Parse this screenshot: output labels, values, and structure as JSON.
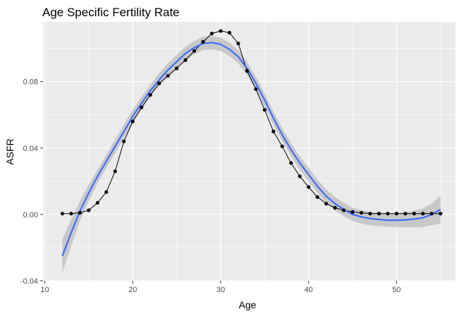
{
  "chart_data": {
    "type": "line",
    "title": "Age Specific Fertility Rate",
    "xlabel": "Age",
    "ylabel": "ASFR",
    "xlim": [
      9.8,
      56.7
    ],
    "ylim": [
      -0.04,
      0.116
    ],
    "x_ticks": [
      10,
      20,
      30,
      40,
      50
    ],
    "y_ticks": [
      -0.04,
      0.0,
      0.04,
      0.08
    ],
    "x_tick_labels": [
      "10",
      "20",
      "30",
      "40",
      "50"
    ],
    "y_tick_labels": [
      "-0.04",
      "0.00",
      "0.04",
      "0.08"
    ],
    "grid": true,
    "legend": "none",
    "colors": {
      "panel": "#ebebeb",
      "grid": "#ffffff",
      "points": "#000000",
      "smooth": "#3366ff",
      "ribbon": "#c2c2c2"
    },
    "series": [
      {
        "kind": "observed-points-with-line",
        "x": [
          12,
          13,
          14,
          15,
          16,
          17,
          18,
          19,
          20,
          21,
          22,
          23,
          24,
          25,
          26,
          27,
          28,
          29,
          30,
          31,
          32,
          33,
          34,
          35,
          36,
          37,
          38,
          39,
          40,
          41,
          42,
          43,
          44,
          45,
          46,
          47,
          48,
          49,
          50,
          51,
          52,
          53,
          54,
          55
        ],
        "values": [
          0.0005,
          0.0005,
          0.001,
          0.0025,
          0.007,
          0.0135,
          0.026,
          0.044,
          0.056,
          0.0645,
          0.072,
          0.079,
          0.0835,
          0.088,
          0.093,
          0.0985,
          0.104,
          0.109,
          0.1105,
          0.1095,
          0.103,
          0.0865,
          0.0755,
          0.063,
          0.05,
          0.041,
          0.031,
          0.023,
          0.0165,
          0.0105,
          0.0065,
          0.004,
          0.0025,
          0.0015,
          0.001,
          0.0005,
          0.0005,
          0.0005,
          0.0005,
          0.0005,
          0.0005,
          0.0005,
          0.0005,
          0.0005
        ]
      },
      {
        "kind": "smooth-fit",
        "x": [
          12,
          13,
          14,
          15,
          16,
          17,
          18,
          19,
          20,
          21,
          22,
          23,
          24,
          25,
          26,
          27,
          28,
          29,
          30,
          31,
          32,
          33,
          34,
          35,
          36,
          37,
          38,
          39,
          40,
          41,
          42,
          43,
          44,
          45,
          46,
          47,
          48,
          49,
          50,
          51,
          52,
          53,
          54,
          55
        ],
        "values": [
          -0.025,
          -0.011,
          0.002,
          0.013,
          0.023,
          0.032,
          0.041,
          0.05,
          0.059,
          0.067,
          0.0745,
          0.081,
          0.087,
          0.092,
          0.097,
          0.1005,
          0.103,
          0.1035,
          0.1025,
          0.0995,
          0.095,
          0.088,
          0.079,
          0.069,
          0.058,
          0.048,
          0.039,
          0.031,
          0.024,
          0.017,
          0.011,
          0.0065,
          0.003,
          0.0,
          -0.0015,
          -0.0025,
          -0.003,
          -0.0035,
          -0.0035,
          -0.0033,
          -0.0028,
          -0.002,
          0.0,
          0.003
        ],
        "ci_low": [
          -0.035,
          -0.019,
          -0.004,
          0.008,
          0.019,
          0.028,
          0.037,
          0.046,
          0.055,
          0.063,
          0.071,
          0.077,
          0.083,
          0.088,
          0.093,
          0.0965,
          0.099,
          0.0995,
          0.0985,
          0.0955,
          0.091,
          0.084,
          0.075,
          0.065,
          0.054,
          0.044,
          0.035,
          0.027,
          0.02,
          0.013,
          0.007,
          0.0025,
          -0.001,
          -0.004,
          -0.0055,
          -0.0065,
          -0.007,
          -0.0075,
          -0.0077,
          -0.0078,
          -0.0078,
          -0.0075,
          -0.0065,
          -0.0055
        ],
        "ci_high": [
          -0.015,
          -0.003,
          0.008,
          0.018,
          0.027,
          0.036,
          0.045,
          0.054,
          0.063,
          0.071,
          0.078,
          0.085,
          0.091,
          0.096,
          0.101,
          0.1045,
          0.107,
          0.1075,
          0.1065,
          0.1035,
          0.099,
          0.092,
          0.083,
          0.073,
          0.062,
          0.052,
          0.043,
          0.035,
          0.028,
          0.021,
          0.015,
          0.0105,
          0.007,
          0.004,
          0.0025,
          0.0015,
          0.001,
          0.0005,
          0.0007,
          0.0012,
          0.0022,
          0.0035,
          0.0065,
          0.0115
        ]
      }
    ]
  }
}
